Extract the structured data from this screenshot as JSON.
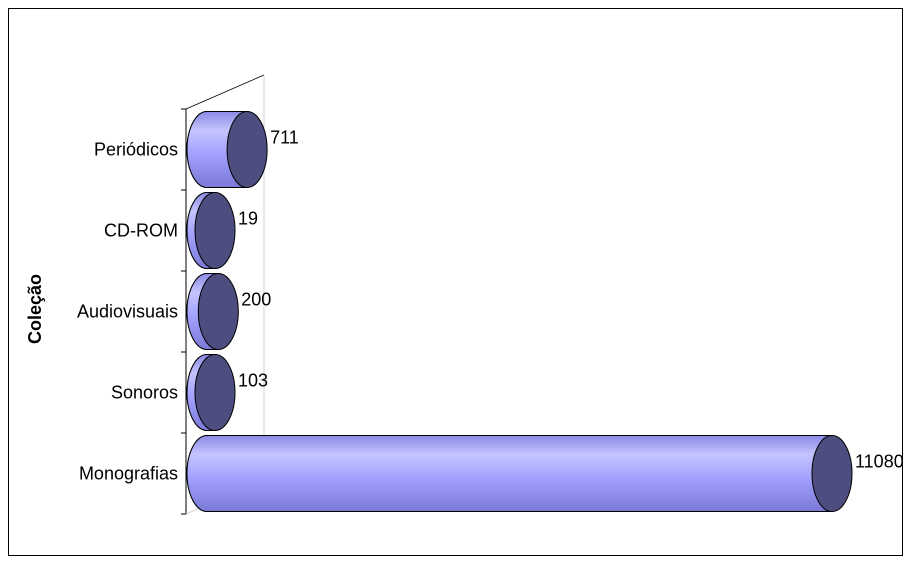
{
  "chart_data": {
    "type": "bar",
    "orientation": "horizontal",
    "style": "3d-cylinder",
    "title": "",
    "xlabel": "",
    "ylabel": "Coleção",
    "categories": [
      "Periódicos",
      "CD-ROM",
      "Audiovisuais",
      "Sonoros",
      "Monografias"
    ],
    "values": [
      711,
      19,
      200,
      103,
      11080
    ],
    "value_labels": [
      "711",
      "19",
      "200",
      "103",
      "11080"
    ],
    "xlim": [
      0,
      11080
    ],
    "grid": false,
    "legend": "none",
    "colors": {
      "bar_side": "#9999ff",
      "bar_side_light": "#b8b8ff",
      "bar_cap": "#4d4d80",
      "outline": "#000000",
      "frame": "#000000"
    }
  }
}
